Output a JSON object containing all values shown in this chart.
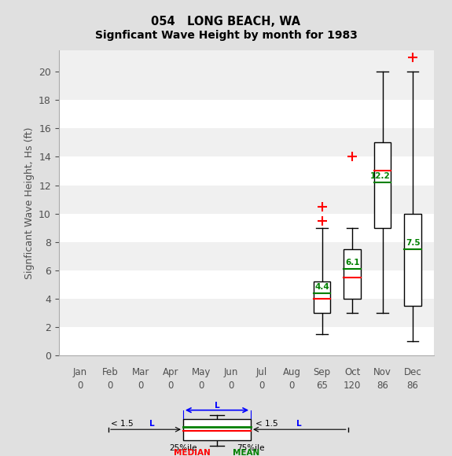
{
  "title1": "054   LONG BEACH, WA",
  "title2": "Signficant Wave Height by month for 1983",
  "ylabel": "Signficant Wave Height, Hs (ft)",
  "months": [
    "Jan",
    "Feb",
    "Mar",
    "Apr",
    "May",
    "Jun",
    "Jul",
    "Aug",
    "Sep",
    "Oct",
    "Nov",
    "Dec"
  ],
  "counts": [
    0,
    0,
    0,
    0,
    0,
    0,
    0,
    0,
    65,
    120,
    86,
    86
  ],
  "ylim": [
    0,
    21.5
  ],
  "yticks": [
    0,
    2,
    4,
    6,
    8,
    10,
    12,
    14,
    16,
    18,
    20
  ],
  "boxes": [
    {
      "month_idx": 8,
      "q1": 3.0,
      "median": 4.0,
      "q3": 5.2,
      "mean": 4.4,
      "whis_low": 1.5,
      "whis_high": 9.0,
      "outliers": [
        9.5,
        10.5
      ]
    },
    {
      "month_idx": 9,
      "q1": 4.0,
      "median": 5.5,
      "q3": 7.5,
      "mean": 6.1,
      "whis_low": 3.0,
      "whis_high": 9.0,
      "outliers": [
        14.0
      ]
    },
    {
      "month_idx": 10,
      "q1": 9.0,
      "median": 13.0,
      "q3": 15.0,
      "mean": 12.2,
      "whis_low": 3.0,
      "whis_high": 20.0,
      "outliers": []
    },
    {
      "month_idx": 11,
      "q1": 3.5,
      "median": 7.5,
      "q3": 10.0,
      "mean": 7.5,
      "whis_low": 1.0,
      "whis_high": 20.0,
      "outliers": [
        21.0
      ]
    }
  ],
  "box_color": "#ffffff",
  "box_edge_color": "#000000",
  "median_color": "#ff0000",
  "mean_color": "#008000",
  "whisker_color": "#000000",
  "outlier_color": "#ff0000",
  "outlier_marker": "+",
  "bg_color": "#e0e0e0",
  "plot_bg_color": "#f0f0f0",
  "stripe_color": "#e0e0e0",
  "grid_color": "#ffffff",
  "text_color": "#505050",
  "box_width": 0.55
}
